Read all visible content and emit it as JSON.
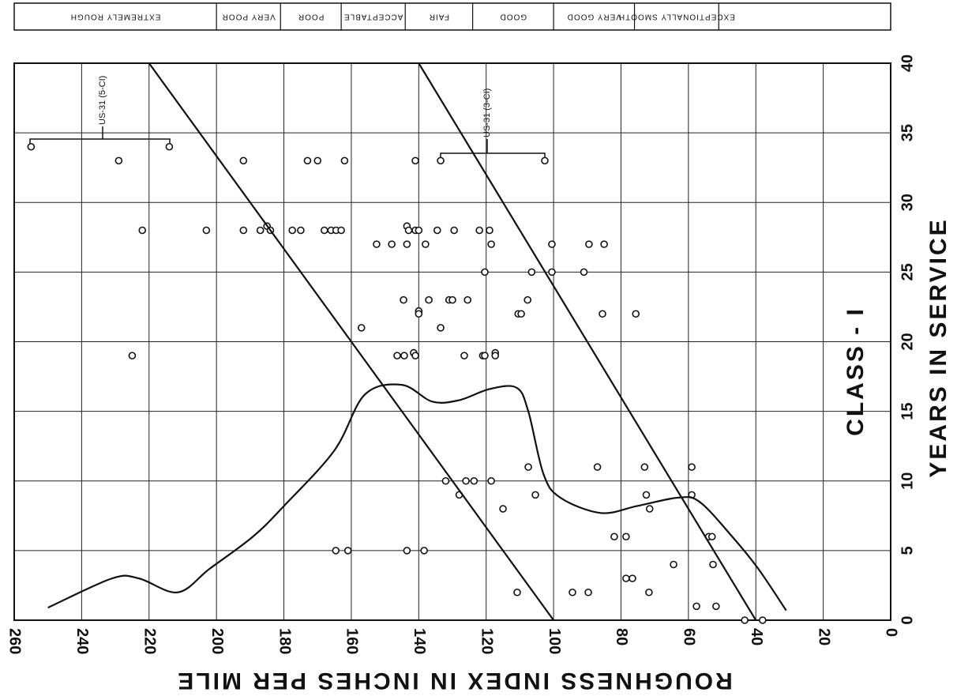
{
  "chart_data": {
    "type": "scatter",
    "x_label": "ROUGHNESS INDEX IN INCHES PER MILE",
    "y_label": "YEARS IN SERVICE",
    "annotations": [
      "CLASS - I",
      "US-31 (5-CI)",
      "US-31 (3-CI)"
    ],
    "xlim": [
      260,
      0
    ],
    "xticks": [
      260,
      240,
      220,
      200,
      180,
      160,
      140,
      120,
      100,
      80,
      60,
      40,
      20,
      0
    ],
    "ylim": [
      0,
      40
    ],
    "yticks": [
      0,
      5,
      10,
      15,
      20,
      25,
      30,
      35,
      40
    ],
    "grid": true,
    "color": "#111111",
    "rating_bands": [
      {
        "label": "EXTREMELY ROUGH",
        "from": 260,
        "to": 200
      },
      {
        "label": "VERY POOR",
        "from": 200,
        "to": 181
      },
      {
        "label": "POOR",
        "from": 181,
        "to": 163
      },
      {
        "label": "ACCEPTABLE",
        "from": 163,
        "to": 144
      },
      {
        "label": "FAIR",
        "from": 144,
        "to": 124
      },
      {
        "label": "GOOD",
        "from": 124,
        "to": 100
      },
      {
        "label": "VERY GOOD",
        "from": 100,
        "to": 76
      },
      {
        "label": "EXCEPTIONALLY SMOOTH",
        "from": 76,
        "to": 51
      }
    ],
    "series": [
      {
        "style": "points",
        "x": [
          255,
          214,
          229,
          192,
          173,
          170,
          162,
          141,
          133.5,
          102.6,
          222,
          203,
          192,
          187,
          185,
          184,
          177.5,
          175,
          168,
          166,
          164.5,
          163,
          143.5,
          143,
          141,
          140,
          134.5,
          129.5,
          122,
          119,
          152.5,
          148,
          143.5,
          138,
          118.5,
          100.5,
          89.5,
          85,
          120.4,
          106.5,
          100.5,
          91,
          144.5,
          137,
          131,
          130,
          125.5,
          107.7,
          140,
          140,
          110.5,
          109.6,
          85.5,
          75.6,
          157,
          133.5,
          225,
          146.4,
          144.3,
          141.5,
          141,
          126.5,
          121,
          120.4,
          117.3,
          117.3,
          132,
          126,
          123.6,
          118.5,
          107.5,
          87,
          73,
          59,
          128,
          105.4,
          72.5,
          59,
          115,
          71.5,
          82,
          78.5,
          54,
          53,
          164.6,
          161,
          143.5,
          138.4,
          64.4,
          52.7,
          78.5,
          76.6,
          110.8,
          94.4,
          89.7,
          71.7,
          57.6,
          51.8,
          43.3,
          38
        ],
        "values": [
          34,
          34,
          33,
          33,
          33,
          33,
          33,
          33,
          33,
          33,
          28,
          28,
          28,
          28,
          28.3,
          28,
          28,
          28,
          28,
          28,
          28,
          28,
          28.3,
          28,
          28,
          28,
          28,
          28,
          28,
          28,
          27,
          27,
          27,
          27,
          27,
          27,
          27,
          27,
          25,
          25,
          25,
          25,
          23,
          23,
          23,
          23,
          23,
          23,
          22.2,
          22,
          22,
          22,
          22,
          22,
          21,
          21,
          19,
          19,
          19,
          19.2,
          19,
          19,
          19,
          19,
          19.2,
          19,
          10,
          10,
          10,
          10,
          11,
          11,
          11,
          11,
          9,
          9,
          9,
          9,
          8,
          8,
          6,
          6,
          6,
          6,
          5,
          5,
          5,
          5,
          4,
          4,
          3,
          3,
          2,
          2,
          2,
          2,
          1,
          1,
          0,
          0
        ]
      },
      {
        "style": "line",
        "x": [
          220,
          100
        ],
        "values": [
          40,
          0
        ]
      },
      {
        "style": "line",
        "x": [
          140,
          40
        ],
        "values": [
          40,
          0
        ]
      },
      {
        "style": "smooth",
        "x": [
          250,
          231,
          223,
          211.5,
          202,
          189.2,
          180,
          165,
          156,
          145,
          136,
          128,
          119,
          111,
          107.5,
          103,
          98,
          86,
          75.2,
          63,
          56.7,
          47,
          39.3,
          31
        ],
        "values": [
          0.9,
          3,
          3,
          2,
          3.7,
          6,
          8.2,
          12.2,
          16.2,
          16.9,
          15.7,
          15.8,
          16.6,
          16.7,
          15,
          10.5,
          8.8,
          7.7,
          8.2,
          8.8,
          8.5,
          6,
          3.7,
          0.7
        ]
      }
    ]
  }
}
